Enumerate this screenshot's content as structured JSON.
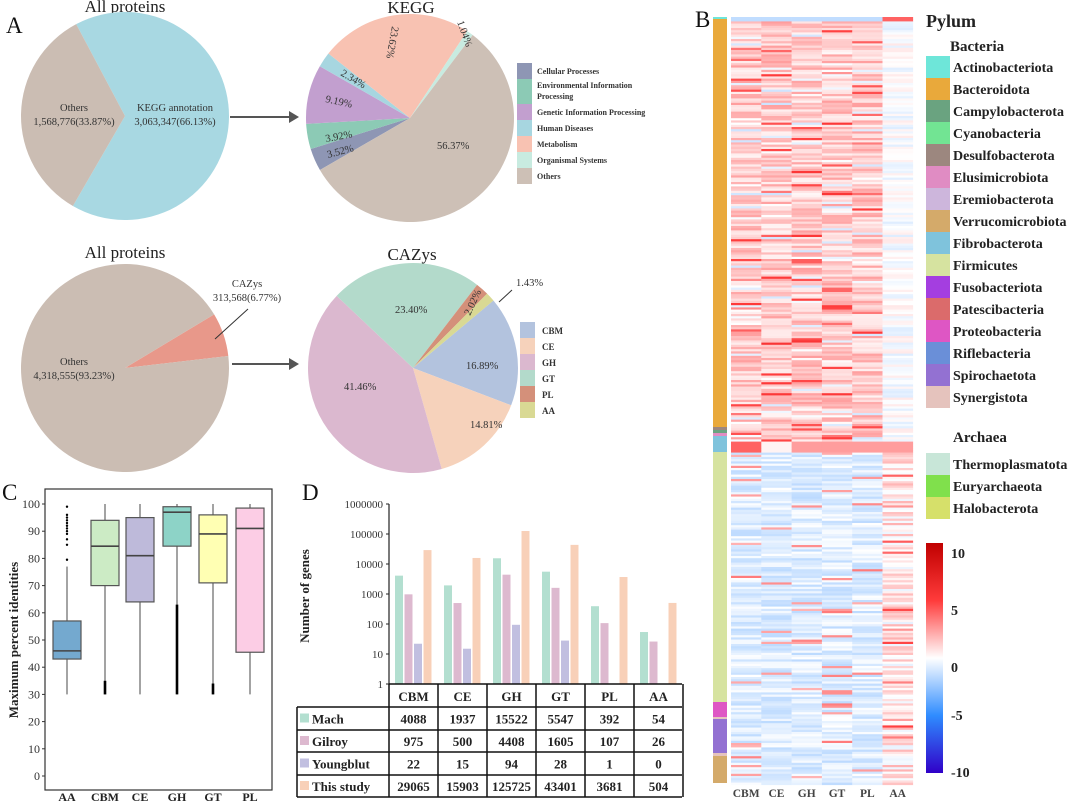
{
  "panels": {
    "a": "A",
    "b": "B",
    "c": "C",
    "d": "D"
  },
  "chart_data": [
    {
      "type": "pie",
      "title": "All proteins",
      "slices": [
        {
          "label": "KEGG annotation",
          "value_label": "3,063,347(66.13%)",
          "count": 3063347,
          "percent": 66.13,
          "color": "#a8d8e2"
        },
        {
          "label": "Others",
          "value_label": "1,568,776(33.87%)",
          "count": 1568776,
          "percent": 33.87,
          "color": "#cbbdb3"
        }
      ]
    },
    {
      "type": "pie",
      "title": "KEGG",
      "legend_position": "right",
      "slices": [
        {
          "label": "Cellular Processes",
          "percent": 3.52,
          "percent_label": "3.52%",
          "color": "#8e96b4"
        },
        {
          "label": "Environmental Information Processing",
          "label_lines": [
            "Environmental Information",
            "Processing"
          ],
          "percent": 3.92,
          "percent_label": "3.92%",
          "color": "#8ccab5"
        },
        {
          "label": "Genetic Information Processing",
          "percent": 9.19,
          "percent_label": "9.19%",
          "color": "#c29fcf"
        },
        {
          "label": "Human Diseases",
          "percent": 2.34,
          "percent_label": "2.34%",
          "color": "#a7d6e0"
        },
        {
          "label": "Metabolism",
          "percent": 23.62,
          "percent_label": "23.62%",
          "color": "#f8c2b2"
        },
        {
          "label": "Organismal Systems",
          "percent": 1.04,
          "percent_label": "1.04%",
          "color": "#c8ebe0"
        },
        {
          "label": "Others",
          "percent": 56.37,
          "percent_label": "56.37%",
          "color": "#cdc0b6"
        }
      ]
    },
    {
      "type": "pie",
      "title": "All proteins",
      "slices": [
        {
          "label": "CAZys",
          "value_label": "313,568(6.77%)",
          "count": 313568,
          "percent": 6.77,
          "color": "#e8988a"
        },
        {
          "label": "Others",
          "value_label": "4,318,555(93.23%)",
          "count": 4318555,
          "percent": 93.23,
          "color": "#cbbdb3"
        }
      ]
    },
    {
      "type": "pie",
      "title": "CAZys",
      "legend_position": "right",
      "slices": [
        {
          "label": "CBM",
          "percent": 16.89,
          "percent_label": "16.89%",
          "color": "#b3c3de"
        },
        {
          "label": "CE",
          "percent": 14.81,
          "percent_label": "14.81%",
          "color": "#f6d2bb"
        },
        {
          "label": "GH",
          "percent": 41.46,
          "percent_label": "41.46%",
          "color": "#dbb8cf"
        },
        {
          "label": "GT",
          "percent": 23.4,
          "percent_label": "23.40%",
          "color": "#b3dacb"
        },
        {
          "label": "PL",
          "percent": 2.02,
          "percent_label": "2.02%",
          "color": "#d4907a"
        },
        {
          "label": "AA",
          "percent": 1.43,
          "percent_label": "1.43%",
          "color": "#d9d994"
        }
      ]
    },
    {
      "type": "box",
      "ylabel": "Maximum percent identities",
      "ylim": [
        0,
        100
      ],
      "yticks": [
        "0",
        "10",
        "20",
        "30",
        "40",
        "50",
        "60",
        "70",
        "80",
        "90",
        "100"
      ],
      "categories": [
        "AA",
        "CBM",
        "CE",
        "GH",
        "GT",
        "PL"
      ],
      "boxes": [
        {
          "q1": 43,
          "median": 46,
          "q3": 57,
          "whisker_low": 30,
          "whisker_high": 77,
          "dense_low_to": null,
          "outliers": [
            79.5,
            85,
            87,
            89,
            90,
            91,
            92,
            93,
            94,
            95,
            96,
            99
          ],
          "color": "#74a9cf"
        },
        {
          "q1": 70,
          "median": 84.5,
          "q3": 94,
          "whisker_low": 30,
          "whisker_high": 100,
          "dense_low_to": 35,
          "outliers": [],
          "color": "#ccebc5"
        },
        {
          "q1": 64,
          "median": 81,
          "q3": 95,
          "whisker_low": 30,
          "whisker_high": 100,
          "dense_low_to": null,
          "outliers": [],
          "color": "#bebada"
        },
        {
          "q1": 84.5,
          "median": 97,
          "q3": 99,
          "whisker_low": 30,
          "whisker_high": 100,
          "dense_low_to": 63,
          "outliers": [],
          "color": "#8dd3c7"
        },
        {
          "q1": 71,
          "median": 89,
          "q3": 96,
          "whisker_low": 30,
          "whisker_high": 100,
          "dense_low_to": 34,
          "outliers": [],
          "color": "#ffffb3"
        },
        {
          "q1": 45.5,
          "median": 91,
          "q3": 98.5,
          "whisker_low": 30,
          "whisker_high": 100,
          "dense_low_to": null,
          "outliers": [],
          "color": "#fccde5"
        }
      ]
    },
    {
      "type": "bar",
      "ylabel": "Number of genes",
      "yscale": "log",
      "ylim": [
        1,
        1000000
      ],
      "yticks": [
        "1",
        "10",
        "100",
        "1000",
        "10000",
        "100000",
        "1000000"
      ],
      "categories": [
        "CBM",
        "CE",
        "GH",
        "GT",
        "PL",
        "AA"
      ],
      "series": [
        {
          "name": "Mach",
          "values": [
            4088,
            1937,
            15522,
            5547,
            392,
            54
          ],
          "color": "#b3dfd0"
        },
        {
          "name": "Gilroy",
          "values": [
            975,
            500,
            4408,
            1605,
            107,
            26
          ],
          "color": "#ddb9cf"
        },
        {
          "name": "Youngblut",
          "values": [
            22,
            15,
            94,
            28,
            1,
            0
          ],
          "color": "#c1bfe0"
        },
        {
          "name": "This study",
          "values": [
            29065,
            15903,
            125725,
            43401,
            3681,
            504
          ],
          "color": "#f8d0b8"
        }
      ]
    },
    {
      "type": "heatmap",
      "columns": [
        "CBM",
        "CE",
        "GH",
        "GT",
        "PL",
        "AA"
      ],
      "legend_title": "Pylum",
      "groups": [
        {
          "name": "Bacteria",
          "phyla": [
            {
              "name": "Actinobacteriota",
              "color": "#6ee6d9"
            },
            {
              "name": "Bacteroidota",
              "color": "#e9a93b"
            },
            {
              "name": "Campylobacterota",
              "color": "#6aa380"
            },
            {
              "name": "Cyanobacteria",
              "color": "#72e493"
            },
            {
              "name": "Desulfobacterota",
              "color": "#9c877f"
            },
            {
              "name": "Elusimicrobiota",
              "color": "#e08cc3"
            },
            {
              "name": "Eremiobacterota",
              "color": "#cdb6dc"
            },
            {
              "name": "Verrucomicrobiota",
              "color": "#d4aa6a"
            },
            {
              "name": "Fibrobacterota",
              "color": "#7fc3dc"
            },
            {
              "name": "Firmicutes",
              "color": "#d6e3a0"
            },
            {
              "name": "Fusobacteriota",
              "color": "#a43ee0"
            },
            {
              "name": "Patescibacteria",
              "color": "#db6b6b"
            },
            {
              "name": "Proteobacteria",
              "color": "#de56c4"
            },
            {
              "name": "Riflebacteria",
              "color": "#6a8fd8"
            },
            {
              "name": "Spirochaetota",
              "color": "#9371d2"
            },
            {
              "name": "Synergistota",
              "color": "#e5c3bd"
            }
          ]
        },
        {
          "name": "Archaea",
          "phyla": [
            {
              "name": "Thermoplasmatota",
              "color": "#c8e6d8"
            },
            {
              "name": "Euryarchaeota",
              "color": "#80e04c"
            },
            {
              "name": "Halobacterota",
              "color": "#d6e06a"
            }
          ]
        }
      ],
      "colorbar": {
        "min": -10,
        "max": 10,
        "ticks": [
          "10",
          "5",
          "0",
          "-5",
          "-10"
        ],
        "colors": [
          "#3000c8",
          "#2f8cff",
          "#ffffff",
          "#ff3b3b",
          "#c00000"
        ]
      }
    }
  ]
}
